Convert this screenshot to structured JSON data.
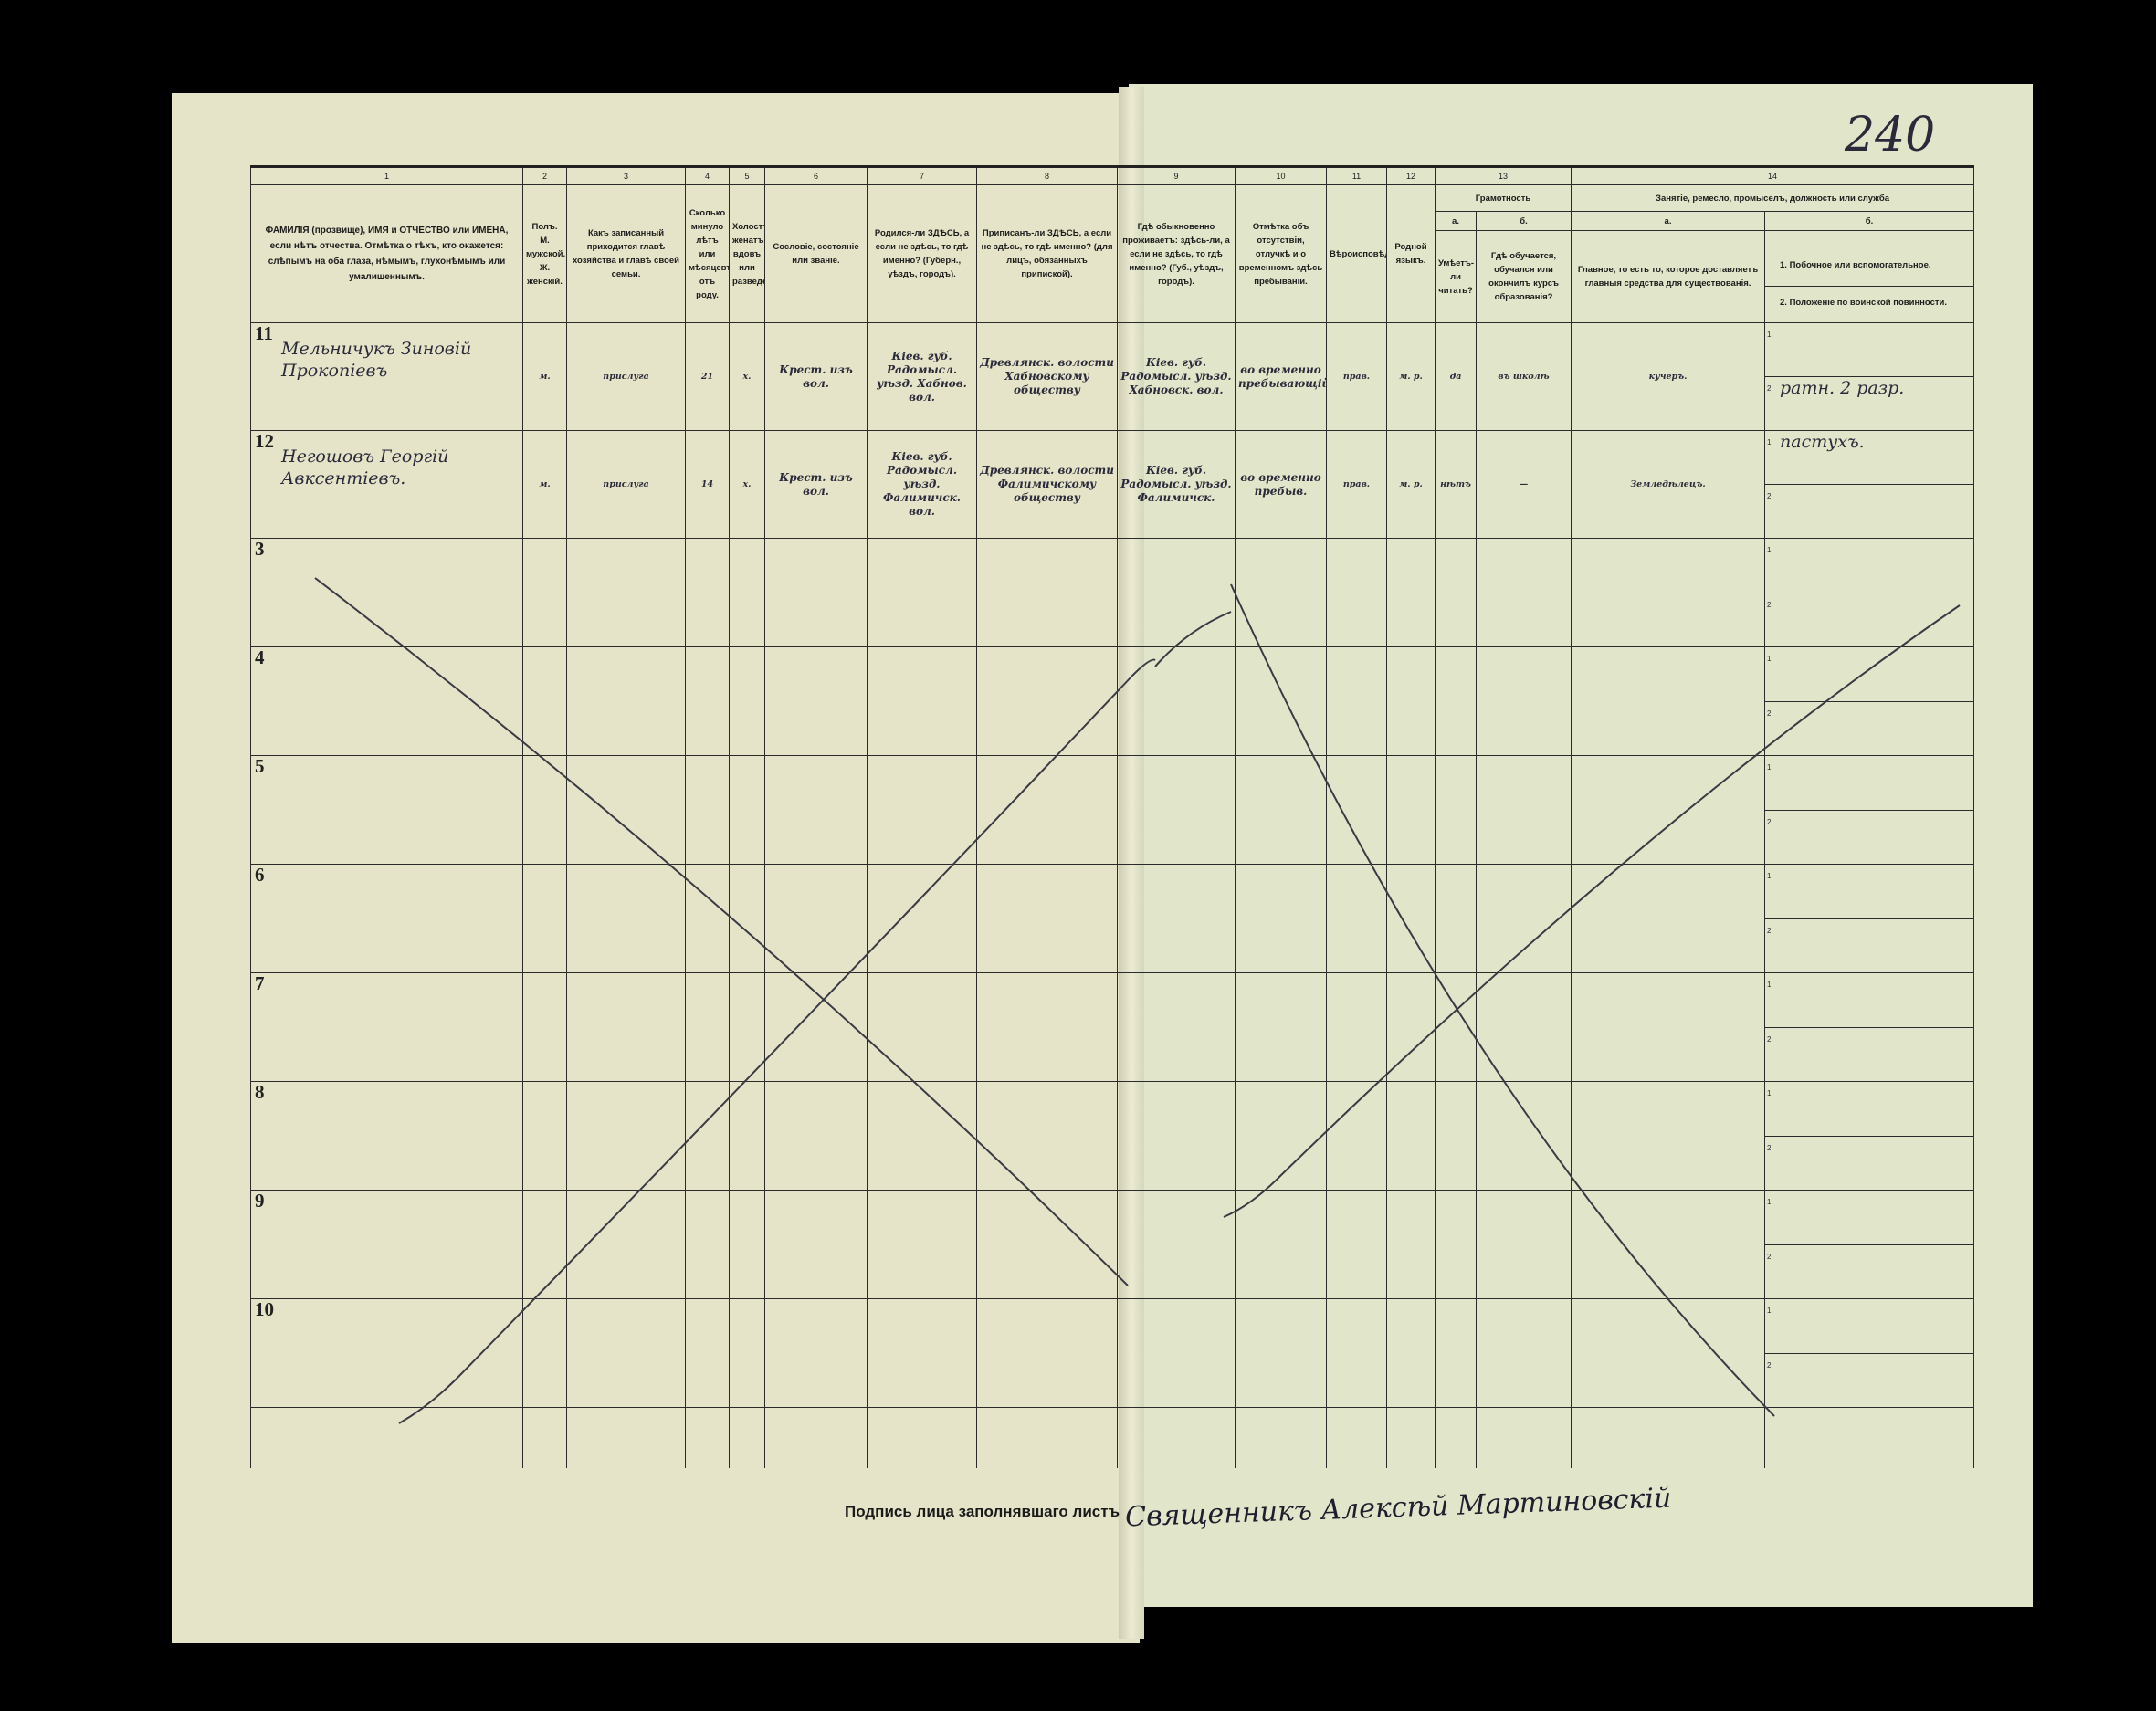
{
  "page_number": "240",
  "header": {
    "col_numbers": [
      "1",
      "2",
      "3",
      "4",
      "5",
      "6",
      "7",
      "8",
      "9",
      "10",
      "11",
      "12",
      "13",
      "14"
    ],
    "col1": "ФАМИЛІЯ (прозвище), ИМЯ и ОТЧЕСТВО или ИМЕНА, если нѣтъ отчества. Отмѣтка о тѣхъ, кто окажется: слѣпымъ на оба глаза, нѣмымъ, глухонѣмымъ или умалишеннымъ.",
    "col2": "Полъ. М. мужской. Ж. женскій.",
    "col3": "Какъ записанный приходится главѣ хозяйства и главѣ своей семьи.",
    "col4": "Сколько минуло лѣтъ или мѣсяцевъ отъ роду.",
    "col5": "Холостъ, женатъ, вдовъ или разведенъ.",
    "col6": "Сословіе, состояніе или званіе.",
    "col7": "Родился-ли ЗДѢСЬ, а если не здѣсь, то гдѣ именно? (Губерн., уѣздъ, городъ).",
    "col8": "Приписанъ-ли ЗДѢСЬ, а если не здѣсь, то гдѣ именно? (для лицъ, обязанныхъ припиской).",
    "col9": "Гдѣ обыкновенно проживаетъ: здѣсь-ли, а если не здѣсь, то гдѣ именно? (Губ., уѣздъ, городъ).",
    "col10": "Отмѣтка объ отсутствіи, отлучкѣ и о временномъ здѣсь пребываніи.",
    "col11": "Вѣроисповѣданіе.",
    "col12": "Родной языкъ.",
    "col13": "Грамотность",
    "col13a_letter": "а.",
    "col13a": "Умѣетъ-ли читать?",
    "col13b_letter": "б.",
    "col13b": "Гдѣ обучается, обучался или окончилъ курсъ образованія?",
    "col14": "Занятіе, ремесло, промыселъ, должность или служба",
    "col14a_letter": "а.",
    "col14a": "Главное, то есть то, которое доставляетъ главныя средства для существованія.",
    "col14b_letter": "б.",
    "col14b1": "1. Побочное или вспомогательное.",
    "col14b2": "2. Положеніе по воинской повинности."
  },
  "rows": [
    {
      "num": "11",
      "name": "Мельничукъ Зиновій Прокопіевъ",
      "sex": "м.",
      "relation": "прислуга",
      "age": "21",
      "marital": "х.",
      "estate": "Крест. изъ вол.",
      "birthplace": "Кіев. губ. Радомысл. уѣзд. Хабнов. вол.",
      "registered": "Древлянск. волости Хабновскому обществу",
      "residence": "Кіев. губ. Радомысл. уѣзд. Хабновск. вол.",
      "absence": "во временно пребывающій",
      "religion": "прав.",
      "language": "м. р.",
      "literate": "да",
      "education": "въ школѣ",
      "occupation_main": "кучеръ.",
      "occupation_side": "",
      "military": "ратн. 2 разр."
    },
    {
      "num": "12",
      "name": "Негошовъ Георгій Авксентіевъ.",
      "sex": "м.",
      "relation": "прислуга",
      "age": "14",
      "marital": "х.",
      "estate": "Крест. изъ вол.",
      "birthplace": "Кіев. губ. Радомысл. уѣзд. Фалимичск. вол.",
      "registered": "Древлянск. волости Фалимичскому обществу",
      "residence": "Кіев. губ. Радомысл. уѣзд. Фалимичск.",
      "absence": "во временно пребыв.",
      "religion": "прав.",
      "language": "м. р.",
      "literate": "нѣтъ",
      "education": "—",
      "occupation_main": "Земледѣлецъ.",
      "occupation_side": "пастухъ.",
      "military": ""
    },
    {
      "num": "3"
    },
    {
      "num": "4"
    },
    {
      "num": "5"
    },
    {
      "num": "6"
    },
    {
      "num": "7"
    },
    {
      "num": "8"
    },
    {
      "num": "9"
    },
    {
      "num": "10"
    }
  ],
  "sub_labels": {
    "one": "1",
    "two": "2"
  },
  "footer": {
    "signature_label": "Подпись лица заполнявшаго листъ",
    "signature": "Священникъ Алексѣй Мартиновскій"
  }
}
